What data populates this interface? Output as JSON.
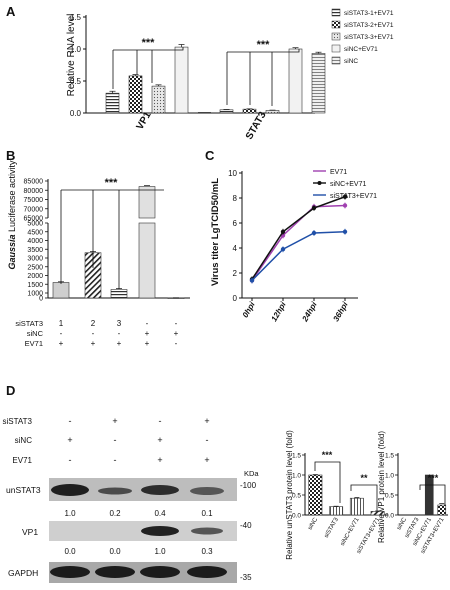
{
  "panels": {
    "A": {
      "letter": "A",
      "ylabel": "Relative RNA level",
      "yticks": [
        "0.0",
        "0.5",
        "1.0",
        "1.5"
      ],
      "groups": [
        "VP1",
        "STAT3"
      ],
      "significance": "***",
      "legend": [
        "siSTAT3-1+EV71",
        "siSTAT3-2+EV71",
        "siSTAT3-3+EV71",
        "siNC+EV71",
        "siNC"
      ]
    },
    "B": {
      "letter": "B",
      "ylabel_italic": "Gaussia",
      "ylabel_rest": " Luciferase activity",
      "yticks": [
        "0",
        "1000",
        "1500",
        "2000",
        "2500",
        "3000",
        "3500",
        "4000",
        "4500",
        "5000",
        "65000",
        "70000",
        "75000",
        "80000",
        "85000"
      ],
      "significance": "***",
      "row_labels": [
        "siSTAT3",
        "siNC",
        "EV71"
      ],
      "row_values": [
        [
          "1",
          "2",
          "3",
          "-",
          "-"
        ],
        [
          "-",
          "-",
          "-",
          "+",
          "+"
        ],
        [
          "+",
          "+",
          "+",
          "+",
          "-"
        ]
      ]
    },
    "C": {
      "letter": "C",
      "ylabel": "Virus titer LgTCID50/mL",
      "yticks": [
        "0",
        "2",
        "4",
        "6",
        "8",
        "10"
      ],
      "xticks": [
        "0hpi",
        "12hpi",
        "24hpi",
        "36hpi"
      ],
      "legend": [
        "EV71",
        "siNC+EV71",
        "siSTAT3+EV71"
      ]
    },
    "D": {
      "letter": "D",
      "treat_labels": [
        "siSTAT3",
        "siNC",
        "EV71"
      ],
      "treat_values": [
        [
          "-",
          "+",
          "-",
          "+"
        ],
        [
          "+",
          "-",
          "+",
          "-"
        ],
        [
          "-",
          "-",
          "+",
          "+"
        ]
      ],
      "kda_label": "KDa",
      "blot_labels": [
        "unSTAT3",
        "VP1",
        "GAPDH"
      ],
      "markers": [
        "-100",
        "-40",
        "-35"
      ],
      "quant_unstat3": [
        "1.0",
        "0.2",
        "0.4",
        "0.1"
      ],
      "quant_vp1": [
        "0.0",
        "0.0",
        "1.0",
        "0.3"
      ],
      "bar1": {
        "ylabel": "Relative unSTAT3 protein level (fold)",
        "yticks": [
          "0.0",
          "0.5",
          "1.0",
          "1.5"
        ],
        "categories": [
          "siNC",
          "siSTAT3",
          "siNC+EV71",
          "siSTAT3+EV71"
        ],
        "sig": [
          "***",
          "**"
        ]
      },
      "bar2": {
        "ylabel": "Relative VP1 protein level (fold)",
        "yticks": [
          "0.0",
          "0.5",
          "1.0",
          "1.5"
        ],
        "categories": [
          "siNC",
          "siSTAT3",
          "siNC+EV71",
          "siSTAT3+EV71"
        ],
        "sig": [
          "***"
        ]
      }
    }
  },
  "chart_data": [
    {
      "type": "bar",
      "panel": "A",
      "categories": [
        "VP1",
        "STAT3"
      ],
      "series": [
        {
          "name": "siSTAT3-1+EV71",
          "values": [
            0.31,
            0.05
          ],
          "errors": [
            0.03,
            0.005
          ]
        },
        {
          "name": "siSTAT3-2+EV71",
          "values": [
            0.58,
            0.06
          ],
          "errors": [
            0.02,
            0.005
          ]
        },
        {
          "name": "siSTAT3-3+EV71",
          "values": [
            0.42,
            0.04
          ],
          "errors": [
            0.02,
            0.005
          ]
        },
        {
          "name": "siNC+EV71",
          "values": [
            1.03,
            1.0
          ],
          "errors": [
            0.04,
            0.02
          ]
        },
        {
          "name": "siNC",
          "values": [
            0.0,
            0.93
          ],
          "errors": [
            0.0,
            0.02
          ]
        }
      ],
      "ylim": [
        0,
        1.5
      ]
    },
    {
      "type": "bar",
      "panel": "B",
      "categories": [
        "1",
        "2",
        "3",
        "4",
        "5"
      ],
      "values": [
        1600,
        3300,
        1200,
        82000,
        40
      ],
      "errors": [
        40,
        80,
        60,
        500,
        10
      ],
      "broken_axis": [
        5000,
        65000
      ]
    },
    {
      "type": "line",
      "panel": "C",
      "x": [
        "0hpi",
        "12hpi",
        "24hpi",
        "36hpi"
      ],
      "series": [
        {
          "name": "EV71",
          "values": [
            1.4,
            5.0,
            7.3,
            7.4
          ],
          "color": "#a040b0"
        },
        {
          "name": "siNC+EV71",
          "values": [
            1.5,
            5.3,
            7.2,
            8.1
          ],
          "color": "#111111"
        },
        {
          "name": "siSTAT3+EV71",
          "values": [
            1.4,
            3.9,
            5.2,
            5.3
          ],
          "color": "#2050a8"
        }
      ],
      "ylim": [
        0,
        10
      ]
    },
    {
      "type": "bar",
      "panel": "D-unSTAT3",
      "categories": [
        "siNC",
        "siSTAT3",
        "siNC+EV71",
        "siSTAT3+EV71"
      ],
      "values": [
        1.0,
        0.21,
        0.42,
        0.09
      ],
      "errors": [
        0.01,
        0.01,
        0.02,
        0.01
      ],
      "ylim": [
        0,
        1.5
      ]
    },
    {
      "type": "bar",
      "panel": "D-VP1",
      "categories": [
        "siNC",
        "siSTAT3",
        "siNC+EV71",
        "siSTAT3+EV71"
      ],
      "values": [
        0.0,
        0.0,
        1.0,
        0.25
      ],
      "errors": [
        0.0,
        0.0,
        0.0,
        0.04
      ],
      "ylim": [
        0,
        1.5
      ]
    }
  ]
}
